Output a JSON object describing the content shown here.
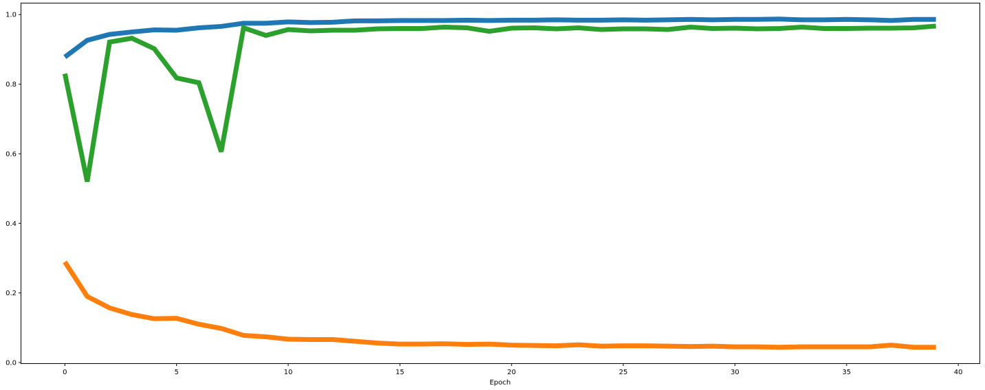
{
  "chart_data": {
    "type": "line",
    "title": "",
    "xlabel": "Epoch",
    "ylabel": "",
    "xlim": [
      -1.95,
      40.95
    ],
    "ylim": [
      -0.002,
      1.032
    ],
    "xticks": [
      0,
      5,
      10,
      15,
      20,
      25,
      30,
      35,
      40
    ],
    "yticks": [
      0.0,
      0.2,
      0.4,
      0.6,
      0.8,
      1.0
    ],
    "grid": false,
    "x": [
      0,
      1,
      2,
      3,
      4,
      5,
      6,
      7,
      8,
      9,
      10,
      11,
      12,
      13,
      14,
      15,
      16,
      17,
      18,
      19,
      20,
      21,
      22,
      23,
      24,
      25,
      26,
      27,
      28,
      29,
      30,
      31,
      32,
      33,
      34,
      35,
      36,
      37,
      38,
      39
    ],
    "series": [
      {
        "color": "#1f77b4",
        "values": [
          0.878,
          0.926,
          0.943,
          0.95,
          0.956,
          0.955,
          0.962,
          0.966,
          0.975,
          0.975,
          0.979,
          0.977,
          0.978,
          0.982,
          0.982,
          0.983,
          0.983,
          0.983,
          0.984,
          0.983,
          0.984,
          0.984,
          0.985,
          0.984,
          0.984,
          0.985,
          0.984,
          0.985,
          0.986,
          0.985,
          0.986,
          0.986,
          0.987,
          0.985,
          0.985,
          0.986,
          0.985,
          0.983,
          0.986,
          0.986
        ]
      },
      {
        "color": "#ff7f0e",
        "values": [
          0.289,
          0.19,
          0.157,
          0.138,
          0.126,
          0.127,
          0.11,
          0.098,
          0.078,
          0.074,
          0.067,
          0.066,
          0.066,
          0.061,
          0.056,
          0.053,
          0.053,
          0.054,
          0.052,
          0.053,
          0.05,
          0.049,
          0.048,
          0.051,
          0.047,
          0.048,
          0.048,
          0.047,
          0.046,
          0.047,
          0.045,
          0.045,
          0.044,
          0.045,
          0.045,
          0.045,
          0.045,
          0.05,
          0.044,
          0.044
        ]
      },
      {
        "color": "#2ca02c",
        "values": [
          0.83,
          0.52,
          0.921,
          0.932,
          0.902,
          0.818,
          0.804,
          0.606,
          0.962,
          0.94,
          0.957,
          0.953,
          0.955,
          0.955,
          0.959,
          0.96,
          0.96,
          0.964,
          0.962,
          0.952,
          0.961,
          0.962,
          0.959,
          0.962,
          0.957,
          0.959,
          0.959,
          0.957,
          0.964,
          0.96,
          0.961,
          0.959,
          0.96,
          0.964,
          0.96,
          0.96,
          0.961,
          0.961,
          0.962,
          0.967
        ]
      }
    ]
  }
}
